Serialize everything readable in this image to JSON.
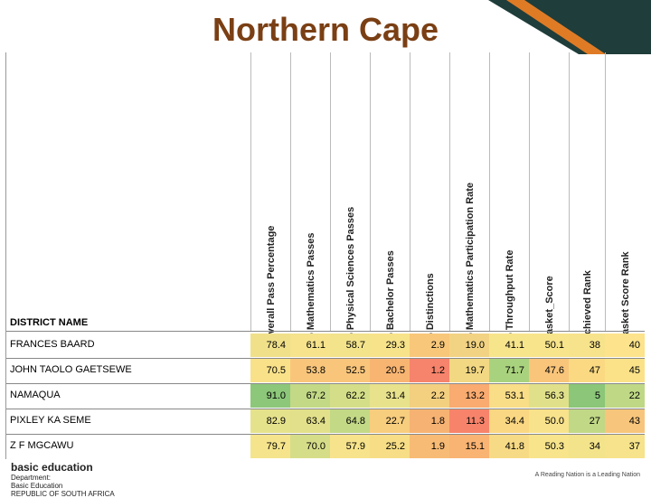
{
  "title": "Northern Cape",
  "column_headers": [
    "Overall  Pass Percentage",
    "% Mathematics Passes",
    "% Physical Sciences Passes",
    "% Bachelor Passes",
    "% Distinctions",
    "% Mathematics Participation Rate",
    "% Throughput  Rate",
    "Basket_Score",
    "Achieved Rank",
    "Basket Score Rank"
  ],
  "district_header": "DISTRICT NAME",
  "rows": [
    {
      "name": "FRANCES BAARD",
      "values": [
        "78.4",
        "61.1",
        "58.7",
        "29.3",
        "2.9",
        "19.0",
        "41.1",
        "50.1",
        "38",
        "40"
      ]
    },
    {
      "name": "JOHN TAOLO GAETSEWE",
      "values": [
        "70.5",
        "53.8",
        "52.5",
        "20.5",
        "1.2",
        "19.7",
        "71.7",
        "47.6",
        "47",
        "45"
      ]
    },
    {
      "name": "NAMAQUA",
      "values": [
        "91.0",
        "67.2",
        "62.2",
        "31.4",
        "2.2",
        "13.2",
        "53.1",
        "56.3",
        "5",
        "22"
      ]
    },
    {
      "name": "PIXLEY KA SEME",
      "values": [
        "82.9",
        "63.4",
        "64.8",
        "22.7",
        "1.8",
        "11.3",
        "34.4",
        "50.0",
        "27",
        "43"
      ]
    },
    {
      "name": "Z F MGCAWU",
      "values": [
        "79.7",
        "70.0",
        "57.9",
        "25.2",
        "1.9",
        "15.1",
        "41.8",
        "50.3",
        "34",
        "37"
      ]
    }
  ],
  "cell_colors": [
    [
      "#f0e08a",
      "#f6e38c",
      "#f3e38b",
      "#f7e38a",
      "#f8c77a",
      "#f2d383",
      "#f7e58c",
      "#f7e48b",
      "#f7e38b",
      "#fce38c"
    ],
    [
      "#f9e18a",
      "#f9c57b",
      "#f9c57b",
      "#f8b572",
      "#f6836b",
      "#f2d883",
      "#a9d27e",
      "#f9c57b",
      "#fad982",
      "#fbe289"
    ],
    [
      "#8dc77a",
      "#c3d986",
      "#d4de88",
      "#e8e28c",
      "#f3cf80",
      "#f9ab70",
      "#f9dd87",
      "#e1e08a",
      "#8bc679",
      "#bfd886"
    ],
    [
      "#e5e28c",
      "#e2e08a",
      "#c3d986",
      "#f7cd7e",
      "#f6b272",
      "#f7836b",
      "#fad782",
      "#f8e28b",
      "#c1d886",
      "#f7c57b"
    ],
    [
      "#f5e48c",
      "#d6dd88",
      "#f7e38b",
      "#f7dd86",
      "#f7bb75",
      "#f9b373",
      "#f7da85",
      "#f7e48b",
      "#f3e38b",
      "#f6e38b"
    ]
  ],
  "footer": {
    "left_brand": "basic education",
    "left_line1": "Department:",
    "left_line2": "Basic Education",
    "left_line3": "REPUBLIC OF SOUTH AFRICA",
    "right_tagline": "A Reading Nation is a Leading Nation"
  }
}
